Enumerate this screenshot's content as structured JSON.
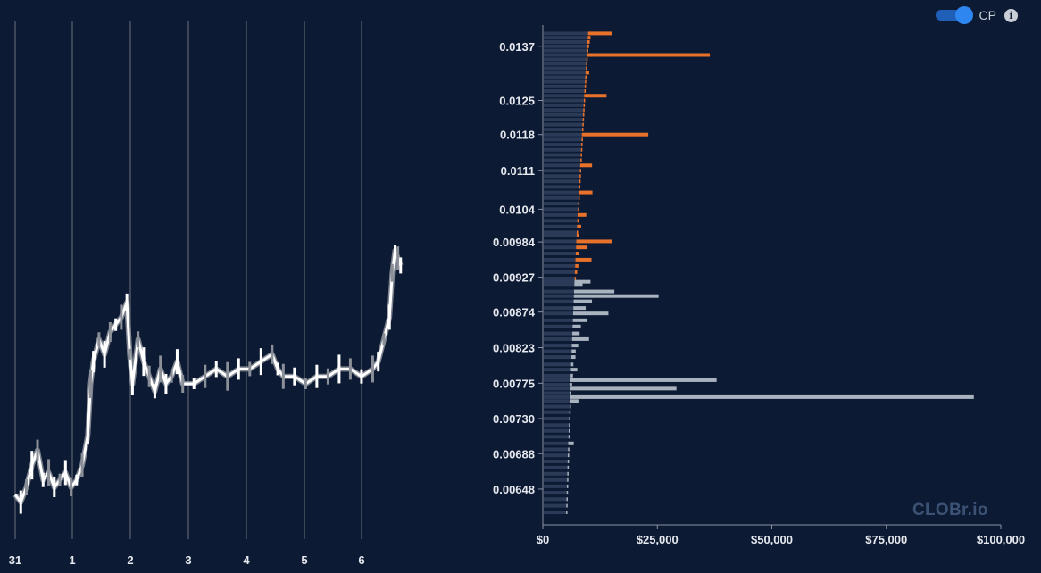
{
  "controls": {
    "cp_label": "CP",
    "cp_enabled": true,
    "info_icon": "info-icon",
    "info_glyph": "i"
  },
  "watermark": "CLOBr.io",
  "colors": {
    "background": "#0d1a33",
    "candle": "#ffffff",
    "candle_shadow": "#8a8f98",
    "ask": "#e8722a",
    "bid": "#a9b2bf",
    "cumulative": "#2a3a57",
    "toggle": "#2e86f0"
  },
  "chart_data": [
    {
      "type": "line",
      "title": "",
      "xlabel": "",
      "ylabel": "",
      "x_ticks": [
        "31",
        "1",
        "2",
        "3",
        "4",
        "5",
        "6"
      ],
      "x_range": [
        0,
        7.0
      ],
      "y_range": [
        0.0058,
        0.0128
      ],
      "grid": "vertical",
      "series": [
        {
          "x": [
            0.0,
            0.1,
            0.2,
            0.3,
            0.4,
            0.5,
            0.6,
            0.7,
            0.8,
            0.9,
            1.0,
            1.1,
            1.2,
            1.3,
            1.35,
            1.4,
            1.5,
            1.6,
            1.7,
            1.8,
            1.9,
            2.0,
            2.05,
            2.1,
            2.2,
            2.3,
            2.4,
            2.5,
            2.6,
            2.7,
            2.8,
            2.9,
            3.0,
            3.2,
            3.4,
            3.6,
            3.8,
            4.0,
            4.2,
            4.4,
            4.6,
            4.7,
            4.8,
            5.0,
            5.2,
            5.4,
            5.6,
            5.8,
            6.0,
            6.2,
            6.4,
            6.5,
            6.6,
            6.7,
            6.75,
            6.8,
            6.85,
            6.9
          ],
          "values": [
            0.0064,
            0.0063,
            0.0065,
            0.0068,
            0.007,
            0.0066,
            0.0067,
            0.0065,
            0.0066,
            0.0067,
            0.0065,
            0.0066,
            0.0068,
            0.0072,
            0.0079,
            0.0082,
            0.0085,
            0.0083,
            0.0086,
            0.0087,
            0.0088,
            0.009,
            0.0083,
            0.0079,
            0.0085,
            0.0082,
            0.008,
            0.0078,
            0.0081,
            0.0079,
            0.008,
            0.0082,
            0.0079,
            0.0079,
            0.008,
            0.0081,
            0.008,
            0.0081,
            0.0081,
            0.0082,
            0.0083,
            0.0081,
            0.008,
            0.008,
            0.0079,
            0.008,
            0.008,
            0.0081,
            0.0081,
            0.008,
            0.0081,
            0.0082,
            0.0085,
            0.0088,
            0.0094,
            0.0097,
            0.0096,
            0.0095
          ]
        }
      ]
    },
    {
      "type": "bar",
      "orientation": "horizontal",
      "title": "",
      "xlabel": "",
      "ylabel": "",
      "y_ticks": [
        "0.0137",
        "0.0125",
        "0.0118",
        "0.0111",
        "0.0104",
        "0.00984",
        "0.00927",
        "0.00874",
        "0.00823",
        "0.00775",
        "0.00730",
        "0.00688",
        "0.00648"
      ],
      "x_ticks": [
        "$0",
        "$25,000",
        "$50,000",
        "$75,000",
        "$100,000"
      ],
      "x_range": [
        0,
        100000
      ],
      "y_range_log": [
        0.0061,
        0.0142
      ],
      "series": [
        {
          "name": "",
          "side": "ask",
          "prices": [
            0.014,
            0.0139,
            0.0138,
            0.0137,
            0.0136,
            0.0135,
            0.0134,
            0.0133,
            0.0132,
            0.0131,
            0.013,
            0.0129,
            0.0128,
            0.0127,
            0.0126,
            0.0125,
            0.0124,
            0.0123,
            0.0122,
            0.0121,
            0.012,
            0.0119,
            0.0118,
            0.0117,
            0.0116,
            0.0115,
            0.0114,
            0.0113,
            0.0112,
            0.0111,
            0.011,
            0.0109,
            0.0108,
            0.0107,
            0.0106,
            0.0105,
            0.0104,
            0.0103,
            0.0102,
            0.0101,
            0.01,
            0.00995,
            0.00985,
            0.00975,
            0.00965,
            0.00955,
            0.00945,
            0.00935,
            0.00925
          ],
          "values": [
            5300,
            600,
            500,
            400,
            300,
            26900,
            300,
            200,
            300,
            800,
            200,
            200,
            300,
            200,
            4900,
            200,
            300,
            200,
            300,
            200,
            300,
            200,
            14500,
            300,
            200,
            200,
            200,
            300,
            2600,
            200,
            200,
            200,
            200,
            3000,
            200,
            200,
            200,
            1900,
            200,
            900,
            200,
            600,
            7700,
            2500,
            800,
            3500,
            700,
            500,
            200
          ]
        },
        {
          "name": "",
          "side": "bid",
          "prices": [
            0.0092,
            0.00915,
            0.00905,
            0.00898,
            0.0089,
            0.0088,
            0.00872,
            0.00862,
            0.00853,
            0.00843,
            0.00835,
            0.00826,
            0.00818,
            0.0081,
            0.008,
            0.00793,
            0.00785,
            0.00779,
            0.00773,
            0.00768,
            0.00762,
            0.00757,
            0.00752,
            0.00745,
            0.00738,
            0.0073,
            0.00722,
            0.00715,
            0.00708,
            0.007,
            0.00693,
            0.00686,
            0.00679,
            0.00672,
            0.00665,
            0.00658,
            0.00651,
            0.00644,
            0.00637,
            0.0063,
            0.00623
          ],
          "values": [
            3500,
            1800,
            8800,
            18500,
            4000,
            2700,
            7700,
            3200,
            1800,
            1600,
            3700,
            1400,
            900,
            900,
            500,
            1400,
            500,
            31900,
            400,
            23200,
            300,
            88200,
            1900,
            300,
            200,
            200,
            200,
            200,
            200,
            1200,
            200,
            200,
            200,
            200,
            200,
            200,
            200,
            200,
            200,
            200,
            200
          ]
        }
      ]
    }
  ]
}
